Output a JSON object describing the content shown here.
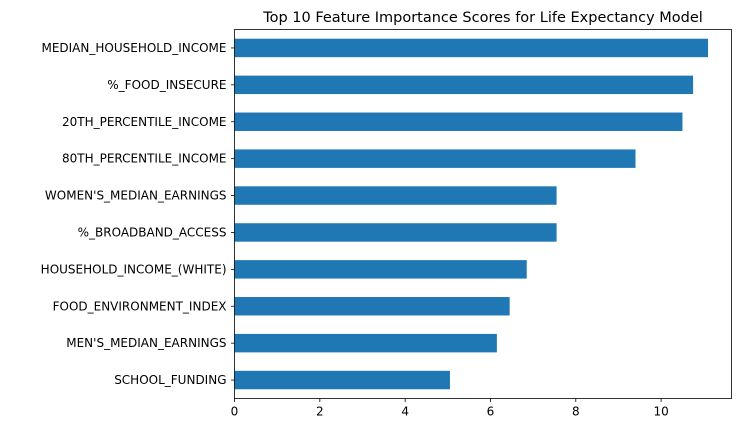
{
  "chart_data": {
    "type": "bar",
    "orientation": "horizontal",
    "title": "Top 10 Feature Importance Scores for Life Expectancy Model",
    "xlabel": "",
    "ylabel": "",
    "categories": [
      "MEDIAN_HOUSEHOLD_INCOME",
      "%_FOOD_INSECURE",
      "20TH_PERCENTILE_INCOME",
      "80TH_PERCENTILE_INCOME",
      "WOMEN'S_MEDIAN_EARNINGS",
      "%_BROADBAND_ACCESS",
      "HOUSEHOLD_INCOME_(WHITE)",
      "FOOD_ENVIRONMENT_INDEX",
      "MEN'S_MEDIAN_EARNINGS",
      "SCHOOL_FUNDING"
    ],
    "values": [
      11.1,
      10.75,
      10.5,
      9.4,
      7.55,
      7.55,
      6.85,
      6.45,
      6.15,
      5.05
    ],
    "xlim": [
      0,
      11.65
    ],
    "xticks": [
      0,
      2,
      4,
      6,
      8,
      10
    ],
    "grid": false,
    "legend": "none",
    "bar_color": "#1f77b4"
  }
}
